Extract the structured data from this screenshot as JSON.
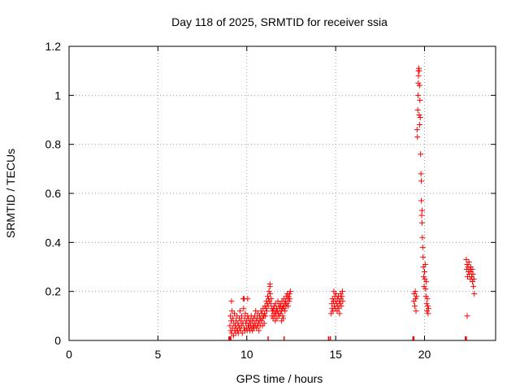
{
  "chart_data": {
    "type": "scatter",
    "title": "Day 118 of 2025, SRMTID for receiver ssia",
    "xlabel": "GPS time / hours",
    "ylabel": "SRMTID / TECUs",
    "xlim": [
      0,
      24
    ],
    "ylim": [
      0,
      1.2
    ],
    "x_ticks": [
      0,
      5,
      10,
      15,
      20
    ],
    "y_ticks": [
      0,
      0.2,
      0.4,
      0.6,
      0.8,
      1,
      1.2
    ],
    "x_tick_labels": [
      "0",
      "5",
      "10",
      "15",
      "20"
    ],
    "y_tick_labels": [
      "0",
      "0.2",
      "0.4",
      "0.6",
      "0.8",
      "1",
      "1.2"
    ],
    "grid": true,
    "marker": "+",
    "color": "#ff0000",
    "series": [
      {
        "points": [
          [
            9.05,
            0.06
          ],
          [
            9.08,
            0.1
          ],
          [
            9.1,
            0.04
          ],
          [
            9.12,
            0.08
          ],
          [
            9.14,
            0.16
          ],
          [
            9.15,
            0.03
          ],
          [
            9.17,
            0.12
          ],
          [
            9.2,
            0.05
          ],
          [
            9.22,
            0.09
          ],
          [
            9.25,
            0.02
          ],
          [
            9.27,
            0.07
          ],
          [
            9.3,
            0.11
          ],
          [
            9.32,
            0.04
          ],
          [
            9.35,
            0.06
          ],
          [
            9.38,
            0.03
          ],
          [
            9.4,
            0.08
          ],
          [
            9.42,
            0.05
          ],
          [
            9.45,
            0.1
          ],
          [
            9.48,
            0.04
          ],
          [
            9.5,
            0.07
          ],
          [
            9.52,
            0.03
          ],
          [
            9.55,
            0.06
          ],
          [
            9.58,
            0.09
          ],
          [
            9.6,
            0.05
          ],
          [
            9.62,
            0.12
          ],
          [
            9.65,
            0.04
          ],
          [
            9.68,
            0.08
          ],
          [
            9.7,
            0.06
          ],
          [
            9.72,
            0.1
          ],
          [
            9.75,
            0.03
          ],
          [
            9.78,
            0.07
          ],
          [
            9.8,
            0.17
          ],
          [
            9.82,
            0.13
          ],
          [
            9.85,
            0.05
          ],
          [
            9.88,
            0.09
          ],
          [
            9.9,
            0.04
          ],
          [
            9.92,
            0.11
          ],
          [
            9.95,
            0.07
          ],
          [
            9.98,
            0.05
          ],
          [
            10.0,
            0.08
          ],
          [
            10.02,
            0.04
          ],
          [
            10.05,
            0.1
          ],
          [
            10.08,
            0.06
          ],
          [
            10.1,
            0.09
          ],
          [
            10.12,
            0.05
          ],
          [
            10.15,
            0.07
          ],
          [
            10.18,
            0.04
          ],
          [
            10.2,
            0.08
          ],
          [
            10.22,
            0.06
          ],
          [
            10.25,
            0.1
          ],
          [
            10.28,
            0.05
          ],
          [
            10.3,
            0.08
          ],
          [
            10.32,
            0.04
          ],
          [
            10.35,
            0.06
          ],
          [
            10.38,
            0.09
          ],
          [
            10.4,
            0.05
          ],
          [
            10.42,
            0.07
          ],
          [
            10.45,
            0.1
          ],
          [
            10.48,
            0.06
          ],
          [
            10.5,
            0.12
          ],
          [
            10.52,
            0.08
          ],
          [
            10.55,
            0.05
          ],
          [
            10.58,
            0.09
          ],
          [
            10.6,
            0.06
          ],
          [
            10.62,
            0.11
          ],
          [
            10.65,
            0.07
          ],
          [
            10.68,
            0.04
          ],
          [
            10.7,
            0.08
          ],
          [
            10.72,
            0.1
          ],
          [
            10.75,
            0.06
          ],
          [
            10.78,
            0.09
          ],
          [
            10.8,
            0.12
          ],
          [
            10.82,
            0.08
          ],
          [
            10.85,
            0.11
          ],
          [
            10.88,
            0.06
          ],
          [
            10.9,
            0.09
          ],
          [
            10.92,
            0.13
          ],
          [
            10.95,
            0.1
          ],
          [
            10.98,
            0.07
          ],
          [
            11.0,
            0.11
          ],
          [
            11.02,
            0.14
          ],
          [
            11.05,
            0.1
          ],
          [
            11.08,
            0.13
          ],
          [
            11.1,
            0.16
          ],
          [
            11.12,
            0.12
          ],
          [
            11.15,
            0.15
          ],
          [
            11.18,
            0.18
          ],
          [
            11.2,
            0.14
          ],
          [
            11.22,
            0.17
          ],
          [
            11.25,
            0.2
          ],
          [
            11.28,
            0.16
          ],
          [
            11.3,
            0.22
          ],
          [
            11.32,
            0.19
          ],
          [
            11.35,
            0.15
          ],
          [
            11.38,
            0.17
          ],
          [
            11.4,
            0.13
          ],
          [
            11.42,
            0.1
          ],
          [
            11.45,
            0.12
          ],
          [
            11.48,
            0.09
          ],
          [
            11.5,
            0.13
          ],
          [
            11.52,
            0.11
          ],
          [
            11.55,
            0.14
          ],
          [
            11.58,
            0.1
          ],
          [
            11.6,
            0.12
          ],
          [
            11.62,
            0.15
          ],
          [
            11.65,
            0.11
          ],
          [
            11.68,
            0.13
          ],
          [
            11.7,
            0.09
          ],
          [
            11.72,
            0.12
          ],
          [
            11.75,
            0.16
          ],
          [
            11.78,
            0.11
          ],
          [
            11.8,
            0.14
          ],
          [
            11.82,
            0.1
          ],
          [
            11.85,
            0.13
          ],
          [
            11.88,
            0.15
          ],
          [
            11.9,
            0.11
          ],
          [
            11.92,
            0.14
          ],
          [
            11.95,
            0.12
          ],
          [
            11.98,
            0.16
          ],
          [
            12.0,
            0.13
          ],
          [
            12.02,
            0.1
          ],
          [
            12.05,
            0.14
          ],
          [
            12.08,
            0.17
          ],
          [
            12.1,
            0.13
          ],
          [
            12.12,
            0.15
          ],
          [
            12.15,
            0.12
          ],
          [
            12.18,
            0.16
          ],
          [
            12.2,
            0.14
          ],
          [
            12.22,
            0.18
          ],
          [
            12.25,
            0.15
          ],
          [
            12.28,
            0.19
          ],
          [
            12.3,
            0.17
          ],
          [
            12.32,
            0.14
          ],
          [
            12.35,
            0.18
          ],
          [
            12.38,
            0.16
          ],
          [
            12.4,
            0.19
          ],
          [
            12.42,
            0.17
          ],
          [
            12.45,
            0.2
          ],
          [
            9.85,
            0.17
          ],
          [
            10.05,
            0.17
          ],
          [
            11.3,
            0.23
          ],
          [
            11.6,
            0.08
          ],
          [
            11.95,
            0.08
          ],
          [
            12.05,
            0.09
          ],
          [
            14.75,
            0.11
          ],
          [
            14.78,
            0.15
          ],
          [
            14.8,
            0.13
          ],
          [
            14.82,
            0.17
          ],
          [
            14.85,
            0.12
          ],
          [
            14.88,
            0.16
          ],
          [
            14.9,
            0.2
          ],
          [
            14.92,
            0.14
          ],
          [
            14.95,
            0.18
          ],
          [
            14.98,
            0.13
          ],
          [
            15.0,
            0.16
          ],
          [
            15.02,
            0.19
          ],
          [
            15.05,
            0.15
          ],
          [
            15.08,
            0.12
          ],
          [
            15.1,
            0.17
          ],
          [
            15.12,
            0.14
          ],
          [
            15.15,
            0.18
          ],
          [
            15.18,
            0.13
          ],
          [
            15.2,
            0.16
          ],
          [
            15.22,
            0.11
          ],
          [
            15.25,
            0.15
          ],
          [
            15.28,
            0.19
          ],
          [
            15.3,
            0.17
          ],
          [
            15.32,
            0.14
          ],
          [
            15.35,
            0.18
          ],
          [
            15.38,
            0.2
          ],
          [
            15.4,
            0.16
          ],
          [
            19.4,
            0.16
          ],
          [
            19.42,
            0.19
          ],
          [
            19.45,
            0.14
          ],
          [
            19.48,
            0.2
          ],
          [
            19.5,
            0.17
          ],
          [
            19.52,
            0.12
          ],
          [
            19.55,
            0.18
          ],
          [
            19.58,
            0.86
          ],
          [
            19.6,
            0.83
          ],
          [
            19.62,
            0.94
          ],
          [
            19.64,
            1.0
          ],
          [
            19.65,
            1.05
          ],
          [
            19.66,
            1.08
          ],
          [
            19.68,
            1.11
          ],
          [
            19.7,
            1.1
          ],
          [
            19.72,
            1.04
          ],
          [
            19.74,
            0.98
          ],
          [
            19.76,
            0.91
          ],
          [
            19.78,
            0.76
          ],
          [
            19.8,
            0.68
          ],
          [
            19.82,
            0.57
          ],
          [
            19.84,
            0.51
          ],
          [
            19.86,
            0.48
          ],
          [
            19.88,
            0.42
          ],
          [
            19.9,
            0.38
          ],
          [
            19.92,
            0.34
          ],
          [
            19.94,
            0.3
          ],
          [
            19.96,
            0.26
          ],
          [
            19.98,
            0.22
          ],
          [
            20.0,
            0.28
          ],
          [
            20.02,
            0.25
          ],
          [
            20.04,
            0.31
          ],
          [
            20.06,
            0.21
          ],
          [
            20.08,
            0.18
          ],
          [
            20.1,
            0.24
          ],
          [
            20.12,
            0.15
          ],
          [
            20.14,
            0.12
          ],
          [
            20.16,
            0.17
          ],
          [
            20.18,
            0.14
          ],
          [
            20.2,
            0.11
          ],
          [
            20.22,
            0.13
          ],
          [
            19.7,
            0.92
          ],
          [
            19.72,
            0.88
          ],
          [
            19.66,
            1.1
          ],
          [
            19.82,
            0.65
          ],
          [
            19.86,
            0.53
          ],
          [
            22.35,
            0.33
          ],
          [
            22.38,
            0.29
          ],
          [
            22.4,
            0.31
          ],
          [
            22.42,
            0.26
          ],
          [
            22.45,
            0.3
          ],
          [
            22.48,
            0.28
          ],
          [
            22.5,
            0.32
          ],
          [
            22.52,
            0.27
          ],
          [
            22.55,
            0.29
          ],
          [
            22.58,
            0.25
          ],
          [
            22.6,
            0.3
          ],
          [
            22.62,
            0.28
          ],
          [
            22.65,
            0.26
          ],
          [
            22.68,
            0.29
          ],
          [
            22.7,
            0.24
          ],
          [
            22.72,
            0.27
          ],
          [
            22.75,
            0.22
          ],
          [
            22.78,
            0.25
          ],
          [
            22.8,
            0.19
          ],
          [
            22.4,
            0.1
          ]
        ]
      }
    ],
    "rug_x": [
      9.0,
      9.05,
      9.1,
      11.2,
      12.1,
      14.6,
      14.7,
      19.35,
      19.4,
      22.3,
      22.35
    ]
  }
}
